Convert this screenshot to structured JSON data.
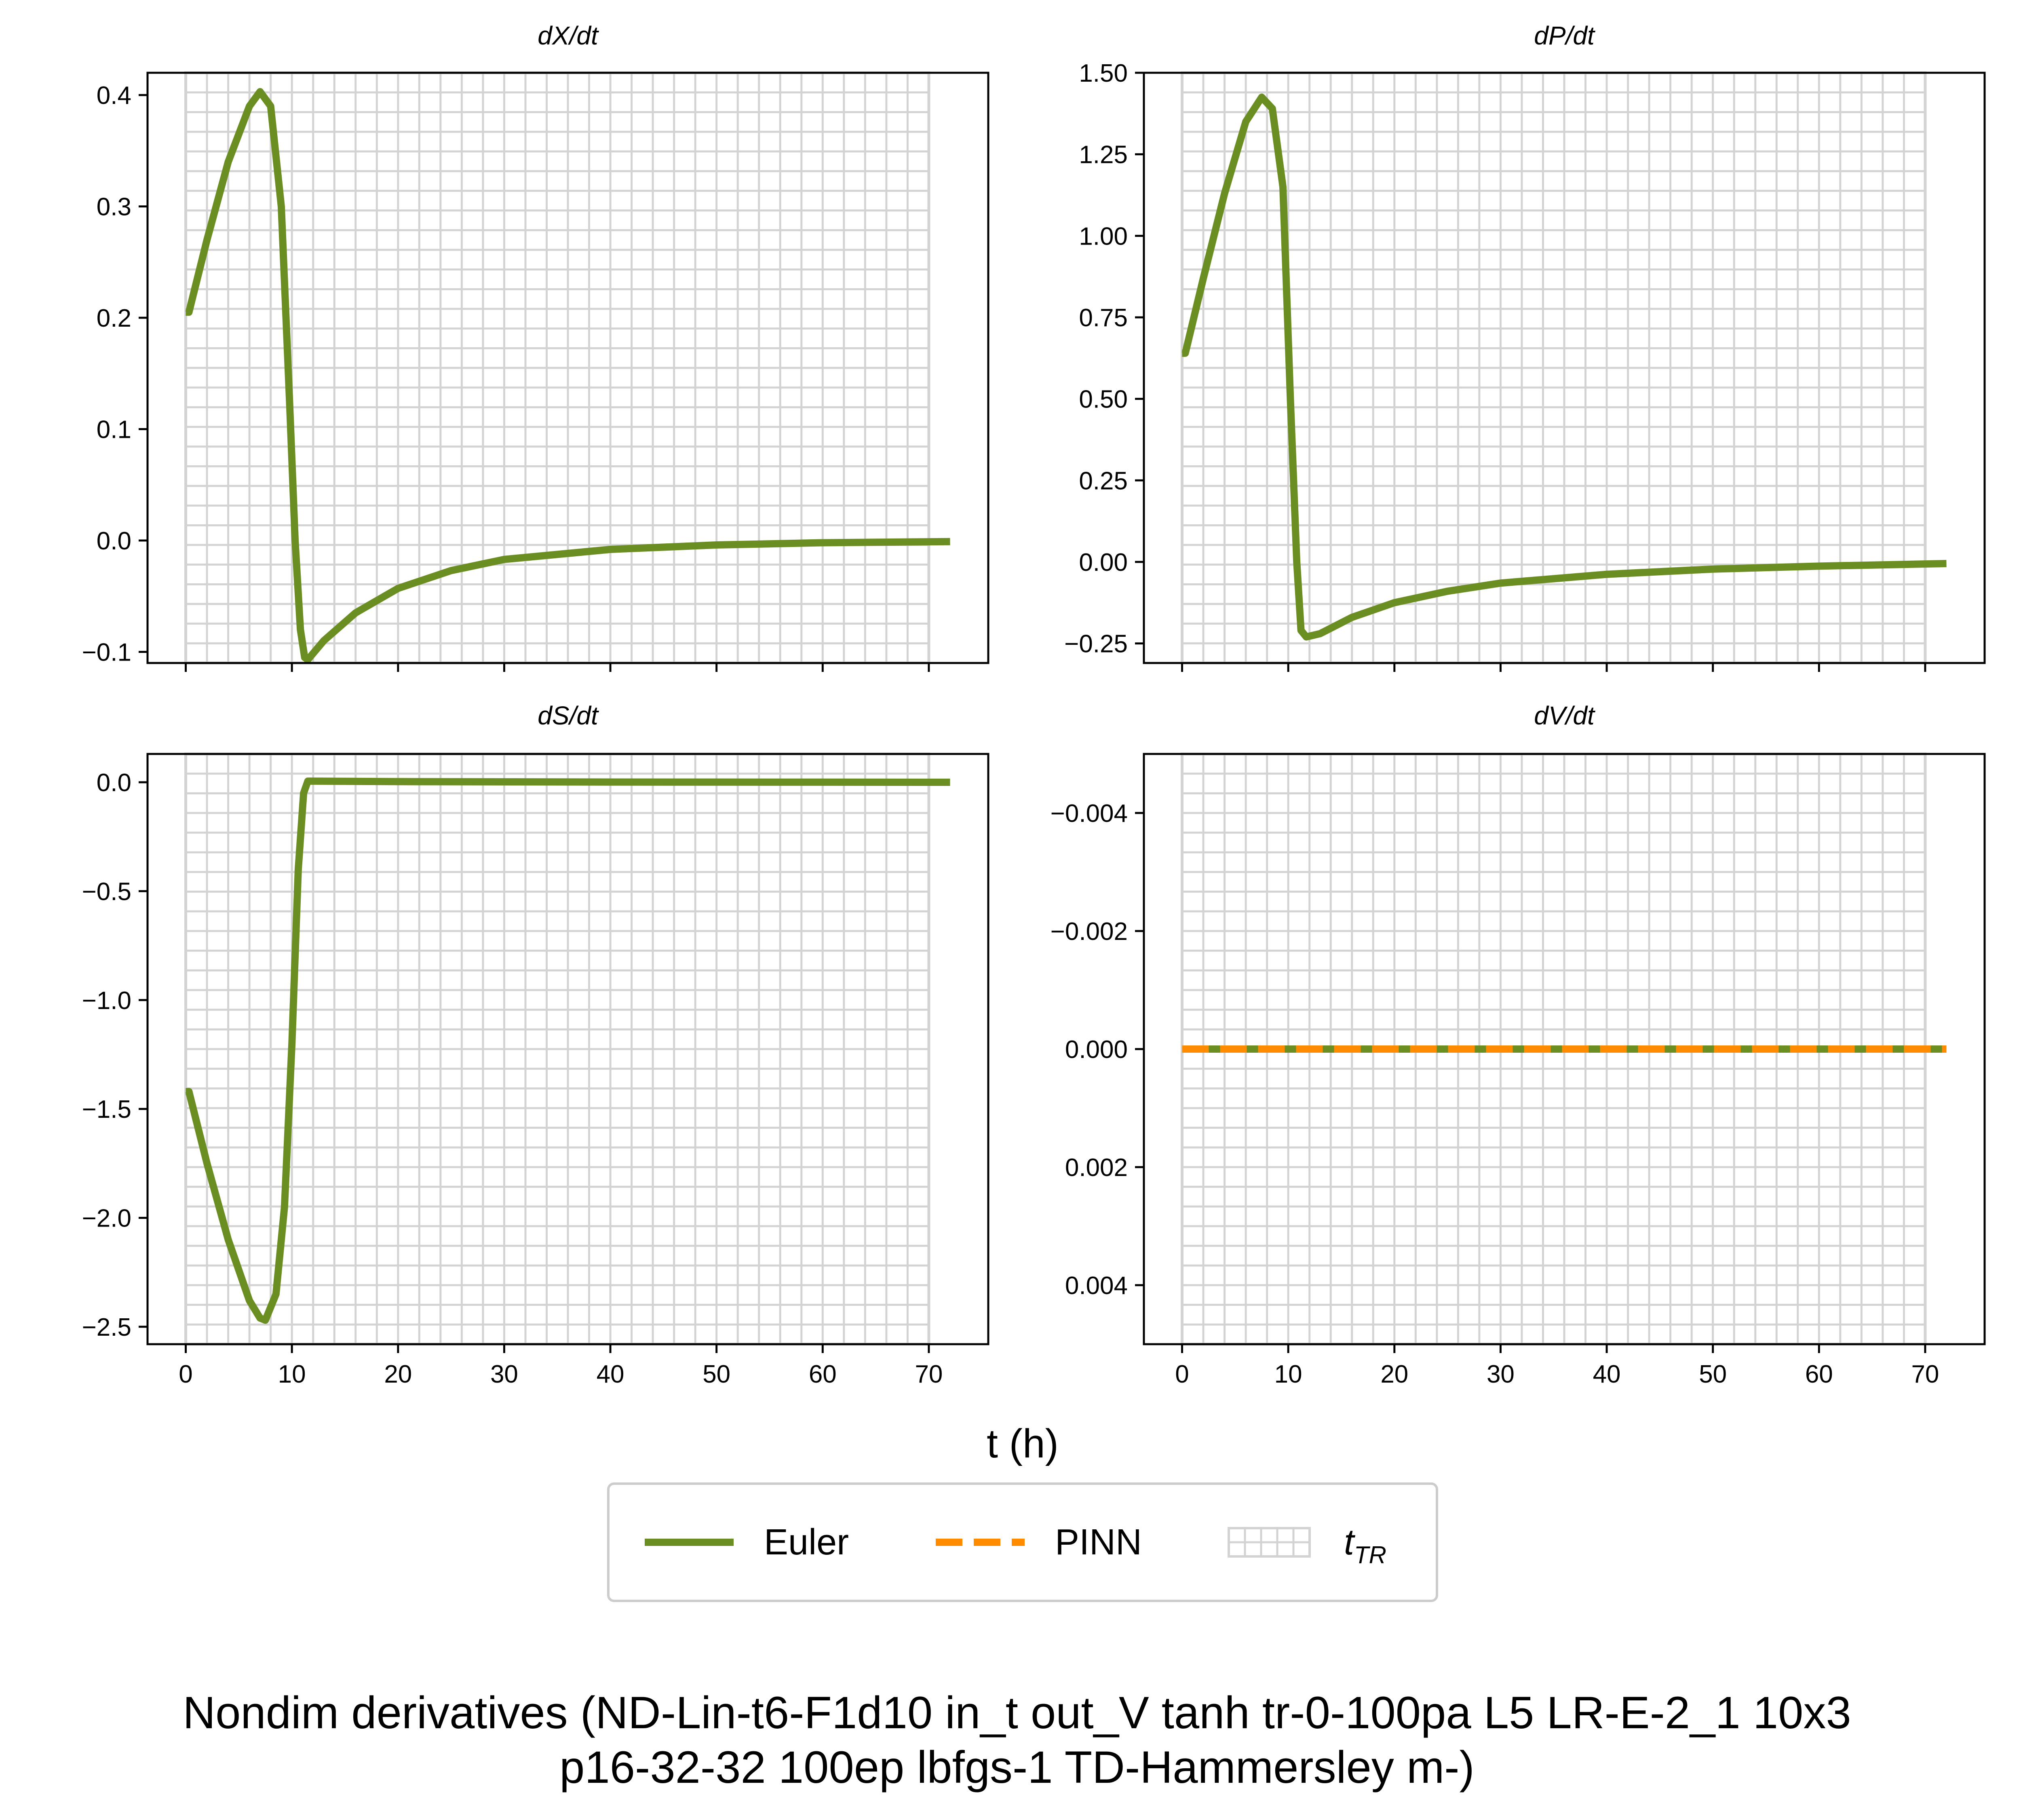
{
  "figure": {
    "xlabel": "t (h)",
    "suptitle_lines": [
      "Nondim derivatives (ND-Lin-t6-F1d10 in_t out_V tanh tr-0-100pa L5 LR-E-2_1 10x3",
      "p16-32-32 100ep lbfgs-1 TD-Hammersley m-)"
    ]
  },
  "legend": {
    "placement": "bottom-center",
    "items": [
      {
        "label": "Euler",
        "style": "solid",
        "color": "#6b8e23"
      },
      {
        "label": "PINN",
        "style": "dashed",
        "color": "#ff8c00"
      },
      {
        "label": "t",
        "subscript": "TR",
        "style": "hatched-patch",
        "color": "#d3d3d3"
      }
    ]
  },
  "colors": {
    "euler": "#6b8e23",
    "pinn": "#ff8c00",
    "grid": "#d3d3d3",
    "axes": "#000000"
  },
  "chart_data": [
    {
      "type": "line",
      "title": "dX/dt",
      "xlim": [
        -3.6,
        75.6
      ],
      "ylim": [
        -0.11,
        0.42
      ],
      "xticks": [
        0,
        10,
        20,
        30,
        40,
        50,
        60,
        70
      ],
      "show_xtick_labels": false,
      "yticks": [
        -0.1,
        0.0,
        0.1,
        0.2,
        0.3,
        0.4
      ],
      "ytick_labels": [
        "−0.1",
        "0.0",
        "0.1",
        "0.2",
        "0.3",
        "0.4"
      ],
      "grid": "t_TR vertical and horizontal lines",
      "series": [
        {
          "name": "Euler",
          "style": "solid",
          "color": "#6b8e23",
          "x": [
            0,
            0.3,
            2,
            4,
            6,
            7,
            8,
            9,
            9.8,
            10.3,
            10.8,
            11.2,
            11.5,
            13,
            16,
            20,
            25,
            30,
            40,
            50,
            60,
            72
          ],
          "y": [
            0.205,
            0.205,
            0.27,
            0.34,
            0.39,
            0.403,
            0.39,
            0.3,
            0.12,
            0.0,
            -0.08,
            -0.105,
            -0.107,
            -0.09,
            -0.065,
            -0.043,
            -0.027,
            -0.017,
            -0.008,
            -0.004,
            -0.002,
            -0.001
          ]
        }
      ]
    },
    {
      "type": "line",
      "title": "dP/dt",
      "xlim": [
        -3.6,
        75.6
      ],
      "ylim": [
        -0.31,
        1.5
      ],
      "xticks": [
        0,
        10,
        20,
        30,
        40,
        50,
        60,
        70
      ],
      "show_xtick_labels": false,
      "yticks": [
        -0.25,
        0.0,
        0.25,
        0.5,
        0.75,
        1.0,
        1.25,
        1.5
      ],
      "ytick_labels": [
        "−0.25",
        "0.00",
        "0.25",
        "0.50",
        "0.75",
        "1.00",
        "1.25",
        "1.50"
      ],
      "grid": "t_TR vertical and horizontal lines",
      "series": [
        {
          "name": "Euler",
          "style": "solid",
          "color": "#6b8e23",
          "x": [
            0,
            0.3,
            2,
            4,
            6,
            7.5,
            8.5,
            9.5,
            10.2,
            10.8,
            11.2,
            11.7,
            13,
            16,
            20,
            25,
            30,
            40,
            50,
            60,
            72
          ],
          "y": [
            0.64,
            0.64,
            0.87,
            1.13,
            1.35,
            1.425,
            1.39,
            1.15,
            0.5,
            0.0,
            -0.21,
            -0.23,
            -0.22,
            -0.17,
            -0.125,
            -0.09,
            -0.065,
            -0.038,
            -0.022,
            -0.013,
            -0.005
          ]
        }
      ]
    },
    {
      "type": "line",
      "title": "dS/dt",
      "xlim": [
        -3.6,
        75.6
      ],
      "ylim": [
        -2.58,
        0.13
      ],
      "xticks": [
        0,
        10,
        20,
        30,
        40,
        50,
        60,
        70
      ],
      "xtick_labels": [
        "0",
        "10",
        "20",
        "30",
        "40",
        "50",
        "60",
        "70"
      ],
      "show_xtick_labels": true,
      "yticks": [
        -2.5,
        -2.0,
        -1.5,
        -1.0,
        -0.5,
        0.0
      ],
      "ytick_labels": [
        "−2.5",
        "−2.0",
        "−1.5",
        "−1.0",
        "−0.5",
        "0.0"
      ],
      "grid": "t_TR vertical and horizontal lines",
      "series": [
        {
          "name": "Euler",
          "style": "solid",
          "color": "#6b8e23",
          "x": [
            0,
            0.3,
            2,
            4,
            6,
            7,
            7.5,
            8.5,
            9.3,
            10,
            10.6,
            11.1,
            11.5,
            12,
            20,
            40,
            72
          ],
          "y": [
            -1.42,
            -1.42,
            -1.75,
            -2.1,
            -2.38,
            -2.46,
            -2.47,
            -2.35,
            -1.95,
            -1.2,
            -0.4,
            -0.05,
            0.005,
            0.005,
            0.003,
            0.001,
            0.0
          ]
        }
      ]
    },
    {
      "type": "line",
      "title": "dV/dt",
      "xlim": [
        -3.6,
        75.6
      ],
      "ylim": [
        0.005,
        -0.005
      ],
      "inverted_y": true,
      "xticks": [
        0,
        10,
        20,
        30,
        40,
        50,
        60,
        70
      ],
      "xtick_labels": [
        "0",
        "10",
        "20",
        "30",
        "40",
        "50",
        "60",
        "70"
      ],
      "show_xtick_labels": true,
      "yticks": [
        -0.004,
        -0.002,
        0.0,
        0.002,
        0.004
      ],
      "ytick_labels": [
        "−0.004",
        "−0.002",
        "0.000",
        "0.002",
        "0.004"
      ],
      "grid": "t_TR vertical and horizontal lines",
      "series": [
        {
          "name": "Euler",
          "style": "solid",
          "color": "#6b8e23",
          "x": [
            0,
            72
          ],
          "y": [
            0,
            0
          ]
        },
        {
          "name": "PINN",
          "style": "dashed",
          "color": "#ff8c00",
          "x": [
            0,
            72
          ],
          "y": [
            0,
            0
          ]
        }
      ]
    }
  ]
}
